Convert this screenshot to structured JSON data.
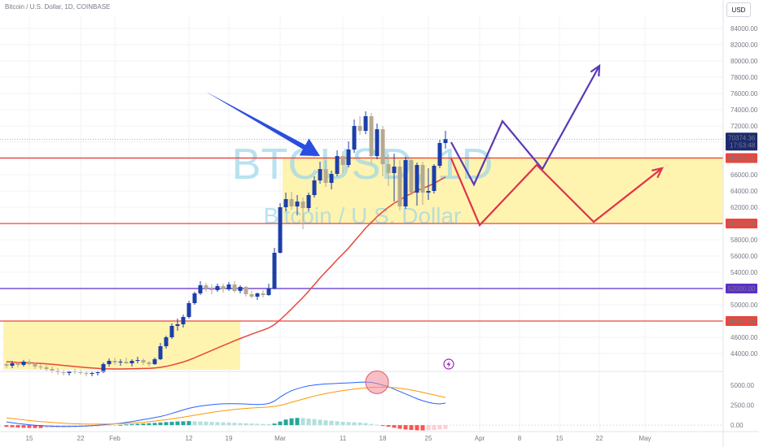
{
  "header": {
    "symbol_line": "Bitcoin / U.S. Dollar, 1D, COINBASE",
    "currency_button": "USD"
  },
  "watermark": {
    "ticker": "BTCUSD, 1D",
    "name": "Bitcoin / U.S. Dollar"
  },
  "colors": {
    "up": "#1c3fa8",
    "down": "#b6a98f",
    "ma": "#e8473b",
    "zone": "#fff3b0",
    "level_red": "#e8473b",
    "level_purple": "#5b2fc9",
    "arrow": "#2b4ee0",
    "path_purple": "#5a39b5",
    "path_red": "#e0334a"
  },
  "chart_data": {
    "type": "candlestick",
    "x_ticks": [
      "15",
      "22",
      "Feb",
      "12",
      "19",
      "Mar",
      "11",
      "18",
      "25",
      "Apr",
      "8",
      "15",
      "22",
      "May"
    ],
    "y_ticks": [
      44000,
      46000,
      48000,
      50000,
      52000,
      54000,
      56000,
      58000,
      60000,
      62000,
      64000,
      66000,
      68000,
      70000,
      72000,
      74000,
      76000,
      78000,
      80000,
      82000,
      84000
    ],
    "y_range": [
      42000,
      85500
    ],
    "current_price": {
      "value": "70374.36",
      "countdown": "17:53:48"
    },
    "levels": [
      {
        "label": "68054.11",
        "value": 68054.11,
        "color": "red"
      },
      {
        "label": "60000.00",
        "value": 60000,
        "color": "red"
      },
      {
        "label": "52000.00",
        "value": 52000,
        "color": "purple"
      },
      {
        "label": "48000.00",
        "value": 48000,
        "color": "red"
      }
    ],
    "zones": [
      {
        "from_day": 0,
        "to_day": 41,
        "low": 42000,
        "high": 48000
      },
      {
        "from_day": 49,
        "to_day": 130,
        "low": 60000,
        "high": 68054.11
      }
    ],
    "candles": [
      [
        42700,
        42900,
        42200,
        42500
      ],
      [
        42500,
        43100,
        42200,
        42800
      ],
      [
        42800,
        43000,
        42300,
        42600
      ],
      [
        42600,
        43200,
        42400,
        43000
      ],
      [
        43000,
        43300,
        42500,
        42700
      ],
      [
        42700,
        42900,
        42100,
        42400
      ],
      [
        42400,
        42700,
        42000,
        42300
      ],
      [
        42300,
        42600,
        41800,
        42100
      ],
      [
        42100,
        42400,
        41600,
        41900
      ],
      [
        41900,
        42200,
        41400,
        41700
      ],
      [
        41700,
        42000,
        41300,
        41600
      ],
      [
        41600,
        41900,
        41300,
        41800
      ],
      [
        41800,
        42100,
        41500,
        41700
      ],
      [
        41700,
        42000,
        41400,
        41600
      ],
      [
        41600,
        41900,
        41200,
        41500
      ],
      [
        41500,
        41800,
        41200,
        41600
      ],
      [
        41600,
        41900,
        41300,
        41700
      ],
      [
        41700,
        42900,
        41600,
        42700
      ],
      [
        42700,
        43400,
        42400,
        43100
      ],
      [
        43100,
        43500,
        42600,
        42900
      ],
      [
        42900,
        43300,
        42500,
        43000
      ],
      [
        43000,
        43500,
        42700,
        42800
      ],
      [
        42800,
        43300,
        42400,
        43100
      ],
      [
        43100,
        43600,
        42800,
        43200
      ],
      [
        43200,
        43400,
        42600,
        42900
      ],
      [
        42900,
        43100,
        42400,
        42700
      ],
      [
        42700,
        43500,
        42600,
        43300
      ],
      [
        43300,
        45300,
        43200,
        44900
      ],
      [
        44900,
        46200,
        44600,
        46000
      ],
      [
        46000,
        47700,
        45800,
        47400
      ],
      [
        47400,
        48300,
        46800,
        47600
      ],
      [
        47600,
        48800,
        47200,
        48500
      ],
      [
        48500,
        50500,
        48300,
        50200
      ],
      [
        50200,
        51600,
        50000,
        51400
      ],
      [
        51400,
        52900,
        51200,
        52400
      ],
      [
        52400,
        52700,
        51600,
        52000
      ],
      [
        52000,
        52500,
        51300,
        51800
      ],
      [
        51800,
        52600,
        51600,
        52300
      ],
      [
        52300,
        52600,
        51500,
        51900
      ],
      [
        51900,
        52800,
        51700,
        52500
      ],
      [
        52500,
        52900,
        51500,
        51700
      ],
      [
        51700,
        52400,
        51400,
        52200
      ],
      [
        52200,
        52300,
        51000,
        51300
      ],
      [
        51300,
        51700,
        50800,
        51000
      ],
      [
        51000,
        51500,
        50600,
        51400
      ],
      [
        51400,
        51800,
        50900,
        51200
      ],
      [
        51200,
        52600,
        51100,
        52000
      ],
      [
        52000,
        57000,
        51900,
        56400
      ],
      [
        56400,
        62500,
        56300,
        62000
      ],
      [
        62000,
        63800,
        61500,
        63000
      ],
      [
        63000,
        63900,
        61700,
        62100
      ],
      [
        62100,
        63500,
        61000,
        62700
      ],
      [
        62700,
        63200,
        59300,
        61900
      ],
      [
        61900,
        63800,
        61500,
        63500
      ],
      [
        63500,
        65800,
        63200,
        65300
      ],
      [
        65300,
        67600,
        64900,
        66700
      ],
      [
        66700,
        67800,
        64500,
        65000
      ],
      [
        65000,
        66500,
        64200,
        66100
      ],
      [
        66100,
        69000,
        65800,
        68300
      ],
      [
        68300,
        68900,
        66200,
        67200
      ],
      [
        67200,
        70100,
        66900,
        69100
      ],
      [
        69100,
        72800,
        68700,
        72000
      ],
      [
        72000,
        73200,
        70900,
        71400
      ],
      [
        71400,
        73800,
        71000,
        73200
      ],
      [
        73200,
        73600,
        67400,
        68300
      ],
      [
        68300,
        72300,
        67900,
        71600
      ],
      [
        71600,
        72000,
        65800,
        67300
      ],
      [
        67300,
        68500,
        64600,
        66200
      ],
      [
        66200,
        68600,
        62700,
        67000
      ],
      [
        67000,
        67800,
        61600,
        62100
      ],
      [
        62100,
        68200,
        61800,
        67800
      ],
      [
        67800,
        68200,
        63500,
        63800
      ],
      [
        63800,
        67500,
        62200,
        67200
      ],
      [
        67200,
        67600,
        62300,
        63800
      ],
      [
        63800,
        66800,
        62900,
        64000
      ],
      [
        64000,
        67300,
        63700,
        67100
      ],
      [
        67100,
        70300,
        66800,
        69900
      ],
      [
        69900,
        71400,
        69200,
        70374
      ]
    ],
    "ma_series": [
      43000,
      42950,
      42900,
      42880,
      42860,
      42830,
      42790,
      42740,
      42680,
      42610,
      42540,
      42470,
      42400,
      42340,
      42280,
      42220,
      42170,
      42130,
      42110,
      42100,
      42100,
      42110,
      42120,
      42140,
      42160,
      42180,
      42220,
      42300,
      42420,
      42580,
      42760,
      42960,
      43200,
      43480,
      43780,
      44080,
      44380,
      44680,
      44980,
      45270,
      45570,
      45850,
      46120,
      46380,
      46640,
      46880,
      47150,
      47560,
      48150,
      48800,
      49500,
      50200,
      50900,
      51680,
      52480,
      53300,
      54050,
      54780,
      55550,
      56250,
      56980,
      57800,
      58620,
      59450,
      60120,
      60850,
      61450,
      62000,
      62500,
      62880,
      63350,
      63680,
      64060,
      64320,
      64600,
      64940,
      65330,
      65720
    ],
    "macd": {
      "range": [
        -700,
        6200
      ],
      "ticks": [
        "5000.00",
        "2500.00",
        "0.00"
      ],
      "histogram": [
        -220,
        -260,
        -300,
        -330,
        -350,
        -360,
        -360,
        -350,
        -330,
        -310,
        -290,
        -270,
        -250,
        -230,
        -200,
        -170,
        -140,
        -100,
        -60,
        -20,
        30,
        80,
        120,
        160,
        200,
        240,
        280,
        330,
        380,
        420,
        460,
        480,
        500,
        480,
        460,
        430,
        400,
        380,
        350,
        320,
        290,
        260,
        230,
        200,
        170,
        150,
        130,
        200,
        450,
        700,
        850,
        900,
        880,
        820,
        760,
        680,
        600,
        540,
        480,
        420,
        380,
        360,
        320,
        260,
        150,
        60,
        -60,
        -200,
        -330,
        -450,
        -540,
        -600,
        -640,
        -660,
        -640,
        -600,
        -540,
        -480
      ],
      "macd_line": [
        400,
        300,
        200,
        120,
        50,
        -10,
        -60,
        -100,
        -130,
        -150,
        -160,
        -160,
        -150,
        -130,
        -100,
        -60,
        -10,
        40,
        100,
        160,
        240,
        340,
        450,
        570,
        690,
        810,
        940,
        1080,
        1260,
        1460,
        1680,
        1900,
        2100,
        2250,
        2380,
        2480,
        2560,
        2620,
        2660,
        2680,
        2680,
        2660,
        2640,
        2600,
        2580,
        2600,
        2700,
        3000,
        3500,
        3950,
        4300,
        4550,
        4750,
        4900,
        5000,
        5080,
        5140,
        5180,
        5220,
        5250,
        5280,
        5320,
        5360,
        5380,
        5340,
        5200,
        5000,
        4800,
        4500,
        4200,
        3900,
        3600,
        3300,
        3050,
        2850,
        2700,
        2650,
        2750
      ],
      "signal_line": [
        900,
        820,
        740,
        660,
        580,
        510,
        450,
        390,
        330,
        280,
        240,
        200,
        170,
        150,
        130,
        120,
        120,
        130,
        140,
        160,
        180,
        210,
        250,
        300,
        360,
        430,
        510,
        590,
        680,
        780,
        890,
        1000,
        1120,
        1240,
        1360,
        1480,
        1590,
        1690,
        1790,
        1880,
        1960,
        2030,
        2090,
        2140,
        2180,
        2220,
        2260,
        2340,
        2480,
        2650,
        2850,
        3050,
        3250,
        3450,
        3630,
        3800,
        3950,
        4080,
        4200,
        4310,
        4410,
        4500,
        4580,
        4650,
        4710,
        4740,
        4750,
        4730,
        4680,
        4600,
        4500,
        4380,
        4240,
        4090,
        3930,
        3770,
        3610,
        3460
      ]
    },
    "annotations": [
      {
        "type": "arrow",
        "from": [
          35,
          76200
        ],
        "to": [
          55,
          68300
        ]
      },
      {
        "type": "path",
        "color": "purple",
        "points": [
          [
            78,
            70000
          ],
          [
            82,
            64800
          ],
          [
            87,
            72600
          ],
          [
            94,
            66700
          ],
          [
            104,
            79400
          ]
        ]
      },
      {
        "type": "path",
        "color": "red",
        "points": [
          [
            78,
            68000
          ],
          [
            83,
            59800
          ],
          [
            93,
            67200
          ],
          [
            103,
            60200
          ],
          [
            115,
            66800
          ]
        ]
      },
      {
        "type": "circle",
        "day": 65,
        "macd_value": 5350
      }
    ]
  }
}
